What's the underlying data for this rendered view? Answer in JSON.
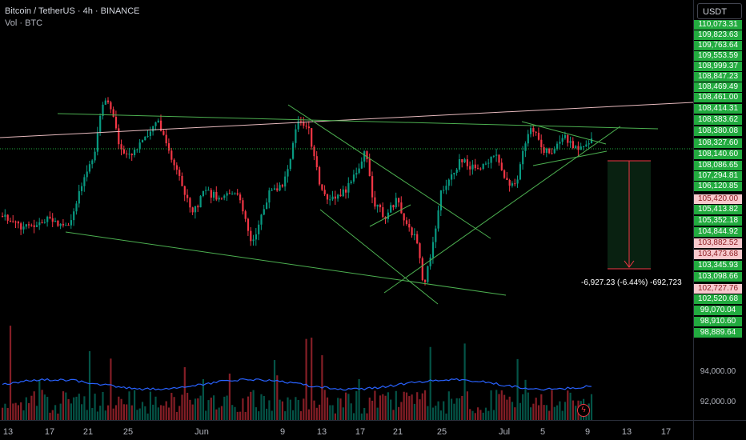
{
  "header": {
    "title": "Bitcoin / TetherUS · 4h · BINANCE",
    "volume_label": "Vol · BTC"
  },
  "price_axis": {
    "currency_button": "USDT",
    "labels": [
      {
        "text": "110,073.31",
        "kind": "green"
      },
      {
        "text": "109,823.63",
        "kind": "green"
      },
      {
        "text": "109,763.64",
        "kind": "green"
      },
      {
        "text": "109,553.59",
        "kind": "green"
      },
      {
        "text": "108,999.37",
        "kind": "green"
      },
      {
        "text": "108,847.23",
        "kind": "green"
      },
      {
        "text": "108,469.49",
        "kind": "green"
      },
      {
        "text": "108,461.00",
        "kind": "green"
      },
      {
        "text": "108,414.31",
        "kind": "green"
      },
      {
        "text": "108,383.62",
        "kind": "green"
      },
      {
        "text": "108,380.08",
        "kind": "green"
      },
      {
        "text": "108,327.60",
        "kind": "cur"
      },
      {
        "text": "108,140.60",
        "kind": "green"
      },
      {
        "text": "108,086.65",
        "kind": "green"
      },
      {
        "text": "107,294.81",
        "kind": "green"
      },
      {
        "text": "106,120.85",
        "kind": "green"
      },
      {
        "text": "105,420.00",
        "kind": "red"
      },
      {
        "text": "105,413.82",
        "kind": "green"
      },
      {
        "text": "105,352.18",
        "kind": "green"
      },
      {
        "text": "104,844.92",
        "kind": "green"
      },
      {
        "text": "103,882.52",
        "kind": "red"
      },
      {
        "text": "103,473.68",
        "kind": "red"
      },
      {
        "text": "103,345.93",
        "kind": "green"
      },
      {
        "text": "103,098.66",
        "kind": "green"
      },
      {
        "text": "102,727.76",
        "kind": "red"
      },
      {
        "text": "102,520.68",
        "kind": "green"
      },
      {
        "text": "99,070.04",
        "kind": "green"
      },
      {
        "text": "98,910.60",
        "kind": "green"
      },
      {
        "text": "98,889.64",
        "kind": "green"
      }
    ],
    "volume_labels": [
      "94,000.00",
      "92,000.00"
    ]
  },
  "time_axis": {
    "labels": [
      "13",
      "17",
      "21",
      "25",
      "Jun",
      "9",
      "13",
      "17",
      "21",
      "25",
      "Jul",
      "5",
      "9",
      "13",
      "17"
    ]
  },
  "measurement": {
    "text": "-6,927.23 (-6.44%) -692,723"
  },
  "colors": {
    "up": "#089981",
    "down": "#f23645",
    "trendline": "#4caf50",
    "ray": "#f7c9cd",
    "ma": "#2962ff",
    "price_label": "#22ab3f",
    "highlight_label": "#f7c9cd"
  },
  "icons": {
    "flash": "flash-icon"
  }
}
